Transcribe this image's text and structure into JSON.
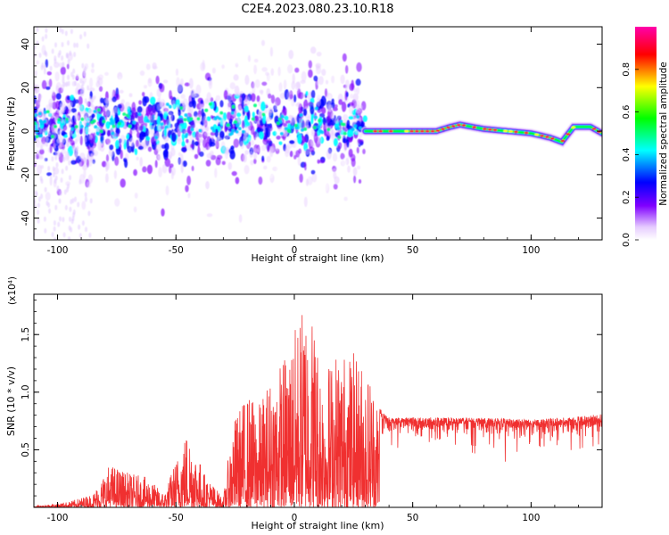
{
  "title": "C2E4.2023.080.23.10.R18",
  "chart_data": [
    {
      "type": "heatmap",
      "xlabel": "Height of straight line (km)",
      "ylabel": "Frequency (Hz)",
      "xlim": [
        -110,
        130
      ],
      "ylim": [
        -50,
        48
      ],
      "xticks": [
        -100,
        -50,
        0,
        50,
        100
      ],
      "yticks": [
        -40,
        -20,
        0,
        20,
        40
      ],
      "colorbar": {
        "label": "Normalized spectral amplitude",
        "range": [
          0.0,
          1.0
        ],
        "ticks": [
          "0.0",
          "0.2",
          "0.4",
          "0.6",
          "0.8"
        ],
        "colors": [
          "#ffffff",
          "#e6ccff",
          "#8000ff",
          "#0000ff",
          "#00ffff",
          "#00ff00",
          "#ffff00",
          "#ff0000",
          "#ff00aa"
        ]
      },
      "ridge": {
        "noisy_region_x": [
          -110,
          30
        ],
        "noisy_center_hz": 3,
        "noisy_spread_hz": 20,
        "line_x": [
          30,
          40,
          50,
          60,
          66,
          70,
          80,
          90,
          100,
          108,
          113,
          118,
          125,
          130
        ],
        "line_y": [
          0,
          0,
          0,
          0,
          2,
          3,
          1,
          0,
          -1,
          -3,
          -5,
          2,
          2,
          -1
        ]
      }
    },
    {
      "type": "line",
      "xlabel": "Height of straight line (km)",
      "ylabel": "SNR (10 * v/v)",
      "y_multiplier": "(x10⁴)",
      "xlim": [
        -110,
        130
      ],
      "ylim": [
        0,
        1.85
      ],
      "xticks": [
        -100,
        -50,
        0,
        50,
        100
      ],
      "yticks": [
        0.5,
        1.0,
        1.5
      ],
      "ytick_labels": [
        "0.5",
        "1.0",
        "1.5"
      ],
      "color": "#f03030",
      "envelope": {
        "x": [
          -110,
          -95,
          -85,
          -78,
          -70,
          -62,
          -55,
          -50,
          -45,
          -38,
          -30,
          -26,
          -20,
          -15,
          -10,
          -5,
          0,
          5,
          8,
          12,
          18,
          25,
          30,
          34,
          36,
          40,
          60,
          80,
          100,
          120,
          130
        ],
        "y": [
          0.01,
          0.05,
          0.12,
          0.38,
          0.3,
          0.26,
          0.12,
          0.42,
          0.7,
          0.3,
          0.08,
          0.75,
          1.0,
          0.9,
          1.15,
          1.3,
          1.55,
          1.85,
          1.7,
          1.2,
          1.4,
          1.35,
          1.25,
          1.1,
          0.9,
          0.82,
          0.82,
          0.82,
          0.8,
          0.83,
          0.85
        ]
      }
    }
  ]
}
